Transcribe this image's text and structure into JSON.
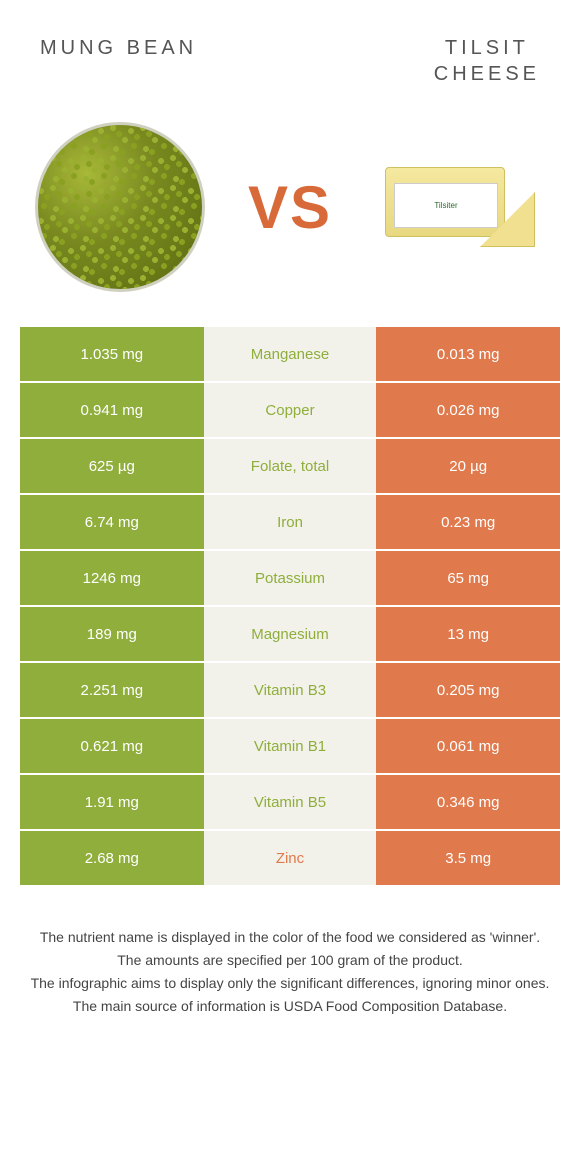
{
  "colors": {
    "mung": "#8fae3b",
    "cheese": "#e07a4d",
    "mid_bg": "#f2f2ea",
    "text_dark": "#555555",
    "vs": "#d86a3a"
  },
  "header": {
    "left": "MUNG BEAN",
    "right": "TILSIT\nCHEESE"
  },
  "vs_label": "VS",
  "rows": [
    {
      "nutrient": "Manganese",
      "left": "1.035 mg",
      "right": "0.013 mg",
      "winner": "left"
    },
    {
      "nutrient": "Copper",
      "left": "0.941 mg",
      "right": "0.026 mg",
      "winner": "left"
    },
    {
      "nutrient": "Folate, total",
      "left": "625 µg",
      "right": "20 µg",
      "winner": "left"
    },
    {
      "nutrient": "Iron",
      "left": "6.74 mg",
      "right": "0.23 mg",
      "winner": "left"
    },
    {
      "nutrient": "Potassium",
      "left": "1246 mg",
      "right": "65 mg",
      "winner": "left"
    },
    {
      "nutrient": "Magnesium",
      "left": "189 mg",
      "right": "13 mg",
      "winner": "left"
    },
    {
      "nutrient": "Vitamin B3",
      "left": "2.251 mg",
      "right": "0.205 mg",
      "winner": "left"
    },
    {
      "nutrient": "Vitamin B1",
      "left": "0.621 mg",
      "right": "0.061 mg",
      "winner": "left"
    },
    {
      "nutrient": "Vitamin B5",
      "left": "1.91 mg",
      "right": "0.346 mg",
      "winner": "left"
    },
    {
      "nutrient": "Zinc",
      "left": "2.68 mg",
      "right": "3.5 mg",
      "winner": "right"
    }
  ],
  "footer": [
    "The nutrient name is displayed in the color of the food we considered as 'winner'.",
    "The amounts are specified per 100 gram of the product.",
    "The infographic aims to display only the significant differences, ignoring minor ones.",
    "The main source of information is USDA Food Composition Database."
  ]
}
